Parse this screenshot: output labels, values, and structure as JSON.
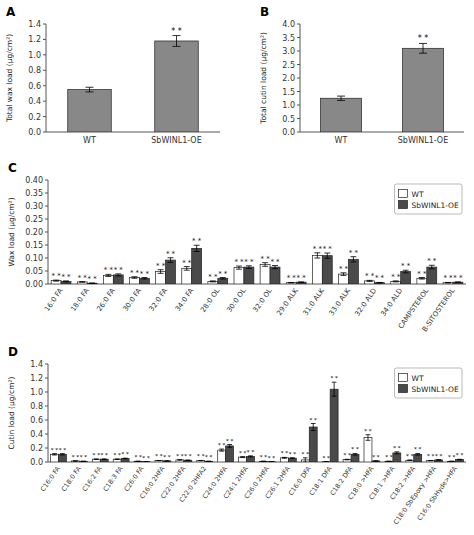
{
  "chart_data": [
    {
      "type": "bar",
      "title": "A",
      "categories": [
        "WT",
        "SbWINL1-OE"
      ],
      "values": [
        0.55,
        1.18
      ],
      "errors": [
        0.03,
        0.07
      ],
      "annotations": [
        null,
        "* *"
      ],
      "color": "#888888",
      "ylabel": "Total wax load (μg/cm²)",
      "ylim": [
        0,
        1.4
      ],
      "yticks": [
        {
          "value": 0,
          "label": "0.0"
        },
        0.2,
        0.4,
        0.6,
        0.8,
        {
          "value": 1,
          "label": "1.0"
        },
        1.2,
        1.4
      ],
      "grid": false
    },
    {
      "type": "bar",
      "title": "B",
      "categories": [
        "WT",
        "SbWINL1-OE"
      ],
      "values": [
        1.25,
        3.1
      ],
      "errors": [
        0.08,
        0.18
      ],
      "annotations": [
        null,
        "* *"
      ],
      "color": "#888888",
      "ylabel": "Total cutin load (μg/cm²)",
      "ylim": [
        0,
        4
      ],
      "yticks": [
        {
          "value": 0,
          "label": "0.0"
        },
        0.5,
        {
          "value": 1,
          "label": "1.0"
        },
        1.5,
        {
          "value": 2,
          "label": "2.0"
        },
        2.5,
        {
          "value": 3,
          "label": "3.0"
        },
        3.5,
        {
          "value": 4,
          "label": "4.0"
        }
      ],
      "grid": false
    },
    {
      "type": "bar",
      "title": "C",
      "categories": [
        "16:0 FA",
        "18:0 FA",
        "26:0 FA",
        "30:0 FA",
        "32:0 FA",
        "34:0 FA",
        "28:0 OL",
        "30:0 OL",
        "32:0 OL",
        "29:0 ALK",
        "31:0 ALK",
        "33:0 ALK",
        "32:0 ALD",
        "34:0 ALD",
        "CAMPSTEROL",
        "B-SITOSTEROL"
      ],
      "series": [
        {
          "name": "WT",
          "color": "#ffffff",
          "values": [
            0.013,
            0.008,
            0.033,
            0.025,
            0.048,
            0.06,
            0.01,
            0.063,
            0.075,
            0.005,
            0.11,
            0.038,
            0.012,
            0.01,
            0.022,
            0.005
          ],
          "errors": [
            0.002,
            0.001,
            0.004,
            0.003,
            0.007,
            0.007,
            0.002,
            0.006,
            0.007,
            0.001,
            0.01,
            0.005,
            0.002,
            0.002,
            0.003,
            0.001
          ],
          "annotations": [
            "* *",
            "* *",
            "* *",
            "* *",
            "* *",
            "* *",
            "* *",
            "* *",
            "* *",
            "* *",
            "* *",
            "* *",
            "* *",
            "* *",
            "* *",
            "* *"
          ]
        },
        {
          "name": "SbWINL1-OE",
          "color": "#4a4a4a",
          "values": [
            0.01,
            0.003,
            0.035,
            0.022,
            0.092,
            0.137,
            0.022,
            0.065,
            0.065,
            0.007,
            0.109,
            0.095,
            0.005,
            0.048,
            0.065,
            0.007
          ],
          "errors": [
            0.002,
            0.001,
            0.004,
            0.003,
            0.009,
            0.012,
            0.003,
            0.005,
            0.006,
            0.001,
            0.01,
            0.01,
            0.001,
            0.005,
            0.007,
            0.001
          ],
          "annotations": [
            "* *",
            "* *",
            "* *",
            "* *",
            "* *",
            "* *",
            "* *",
            "* *",
            "* *",
            "* *",
            "* *",
            "* *",
            "* *",
            "* *",
            "* *",
            "* *"
          ]
        }
      ],
      "ylabel": "Wax load (μg/cm²)",
      "ylim": [
        0,
        0.4
      ],
      "yticks": [
        {
          "value": 0,
          "label": "0.00"
        },
        0.05,
        {
          "value": 0.1,
          "label": "0.10"
        },
        0.15,
        {
          "value": 0.2,
          "label": "0.20"
        },
        0.25,
        {
          "value": 0.3,
          "label": "0.30"
        },
        0.35,
        {
          "value": 0.4,
          "label": "0.40"
        }
      ],
      "legend": "upper right",
      "grid": false
    },
    {
      "type": "bar",
      "title": "D",
      "categories": [
        "C16:0 FA",
        "C18:0 FA",
        "C16:2 FA",
        "C18:3 FA",
        "C26:0 FA",
        "C16:0 2HFA",
        "C22:0 2HFA",
        "C22:0 2HFA2",
        "C24:0 2HFA",
        "C24:1 2HFA",
        "C26:0 2HFA",
        "C26:1 2HFA",
        "C16:0 DFA",
        "C18:1 DFA",
        "C18:2 DFA",
        "C18:0 >HFA",
        "C18:1 >HFA",
        "C18:2 >HFA",
        "C18:0 SbEpoxy >HFA",
        "C16:0 SbHyde>HFA"
      ],
      "series": [
        {
          "name": "WT",
          "color": "#ffffff",
          "values": [
            0.11,
            0.015,
            0.04,
            0.04,
            0.01,
            0.02,
            0.03,
            0.02,
            0.17,
            0.07,
            0.01,
            0.06,
            0.03,
            0.005,
            0.035,
            0.35,
            0.01,
            0.025,
            0.02,
            0.01
          ],
          "errors": [
            0.01,
            0.002,
            0.004,
            0.004,
            0.001,
            0.002,
            0.003,
            0.002,
            0.015,
            0.007,
            0.001,
            0.006,
            0.03,
            0.001,
            0.004,
            0.04,
            0.001,
            0.003,
            0.002,
            0.001
          ],
          "annotations": [
            "* *",
            "* *",
            "* *",
            "* *",
            "* *",
            "* *",
            "* *",
            "* *",
            "* *",
            "* *",
            "* *",
            "* *",
            "* *",
            "* *",
            "* *",
            "* *",
            "* *",
            "* *",
            "* *",
            "* *"
          ]
        },
        {
          "name": "SbWINL1-OE",
          "color": "#4a4a4a",
          "values": [
            0.11,
            0.01,
            0.04,
            0.05,
            0.005,
            0.015,
            0.025,
            0.01,
            0.23,
            0.08,
            0.005,
            0.055,
            0.5,
            1.04,
            0.11,
            0.015,
            0.13,
            0.11,
            0.03,
            0.035
          ],
          "errors": [
            0.01,
            0.001,
            0.004,
            0.005,
            0.001,
            0.002,
            0.003,
            0.001,
            0.02,
            0.008,
            0.001,
            0.006,
            0.05,
            0.1,
            0.012,
            0.002,
            0.015,
            0.012,
            0.003,
            0.004
          ],
          "annotations": [
            "* *",
            "* *",
            "* *",
            "* *",
            "* *",
            "* *",
            "* *",
            "* *",
            "* *",
            "* *",
            "* *",
            "* *",
            "* *",
            "* *",
            "* *",
            "* *",
            "* *",
            "* *",
            "* *",
            "* *"
          ]
        }
      ],
      "ylabel": "Cutin load (μg/cm²)",
      "ylim": [
        0,
        1.4
      ],
      "yticks": [
        {
          "value": 0,
          "label": "0.0"
        },
        0.2,
        0.4,
        0.6,
        0.8,
        {
          "value": 1,
          "label": "1.0"
        },
        1.2,
        1.4
      ],
      "legend": "upper right",
      "grid": false
    }
  ]
}
